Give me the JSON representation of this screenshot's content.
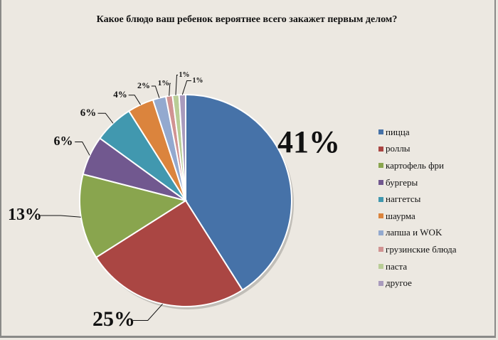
{
  "chart_data": {
    "type": "pie",
    "title": "Какое блюдо ваш ребенок вероятнее всего закажет первым делом?",
    "categories": [
      "пицца",
      "роллы",
      "картофель фри",
      "бургеры",
      "наггетсы",
      "шаурма",
      "лапша и WOK",
      "грузинские блюда",
      "паста",
      "другое"
    ],
    "values": [
      41,
      25,
      13,
      6,
      6,
      4,
      2,
      1,
      1,
      1
    ],
    "labels": [
      "41%",
      "25%",
      "13%",
      "6%",
      "6%",
      "4%",
      "2%",
      "1%",
      "1%",
      "1%"
    ],
    "colors": [
      "#4672a8",
      "#aa4643",
      "#89a54e",
      "#71588f",
      "#4198af",
      "#db843d",
      "#93a9cf",
      "#d19392",
      "#b9cd96",
      "#a99bbd"
    ],
    "legend_position": "right"
  }
}
